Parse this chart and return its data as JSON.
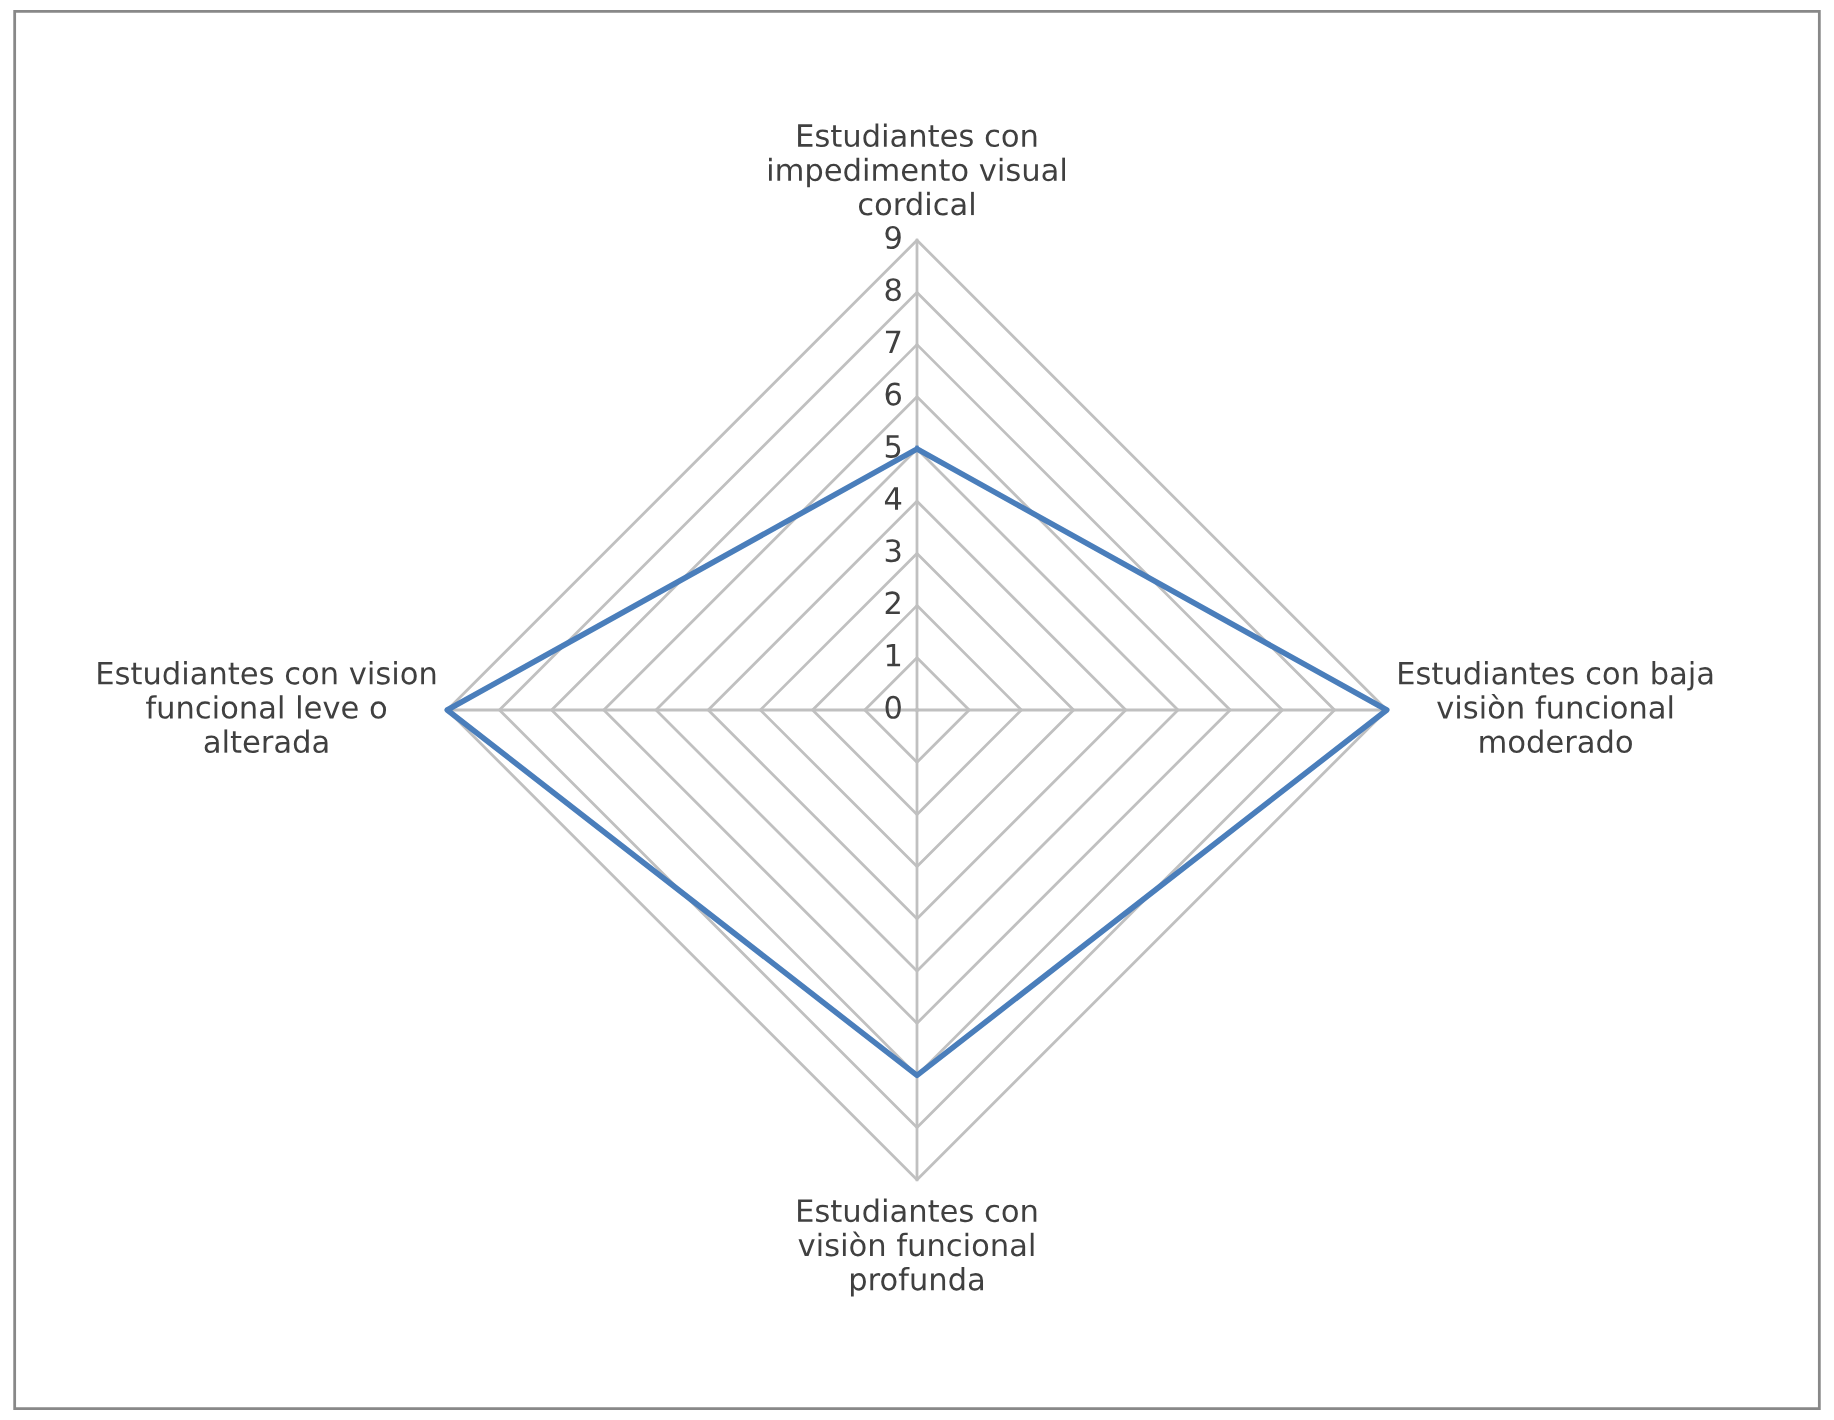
{
  "chart_data": {
    "type": "radar",
    "categories": [
      "Estudiantes con impedimento visual cordical",
      "Estudiantes con baja visiòn funcional moderado",
      "Estudiantes con visiòn funcional profunda",
      "Estudiantes con vision funcional leve o alterada"
    ],
    "series": [
      {
        "color": "#4a7ebb",
        "values": [
          5,
          9,
          7,
          9
        ]
      }
    ],
    "ylim": [
      0,
      9
    ],
    "yticks": [
      0,
      1,
      2,
      3,
      4,
      5,
      6,
      7,
      8,
      9
    ],
    "grid": true,
    "marker": "none"
  }
}
